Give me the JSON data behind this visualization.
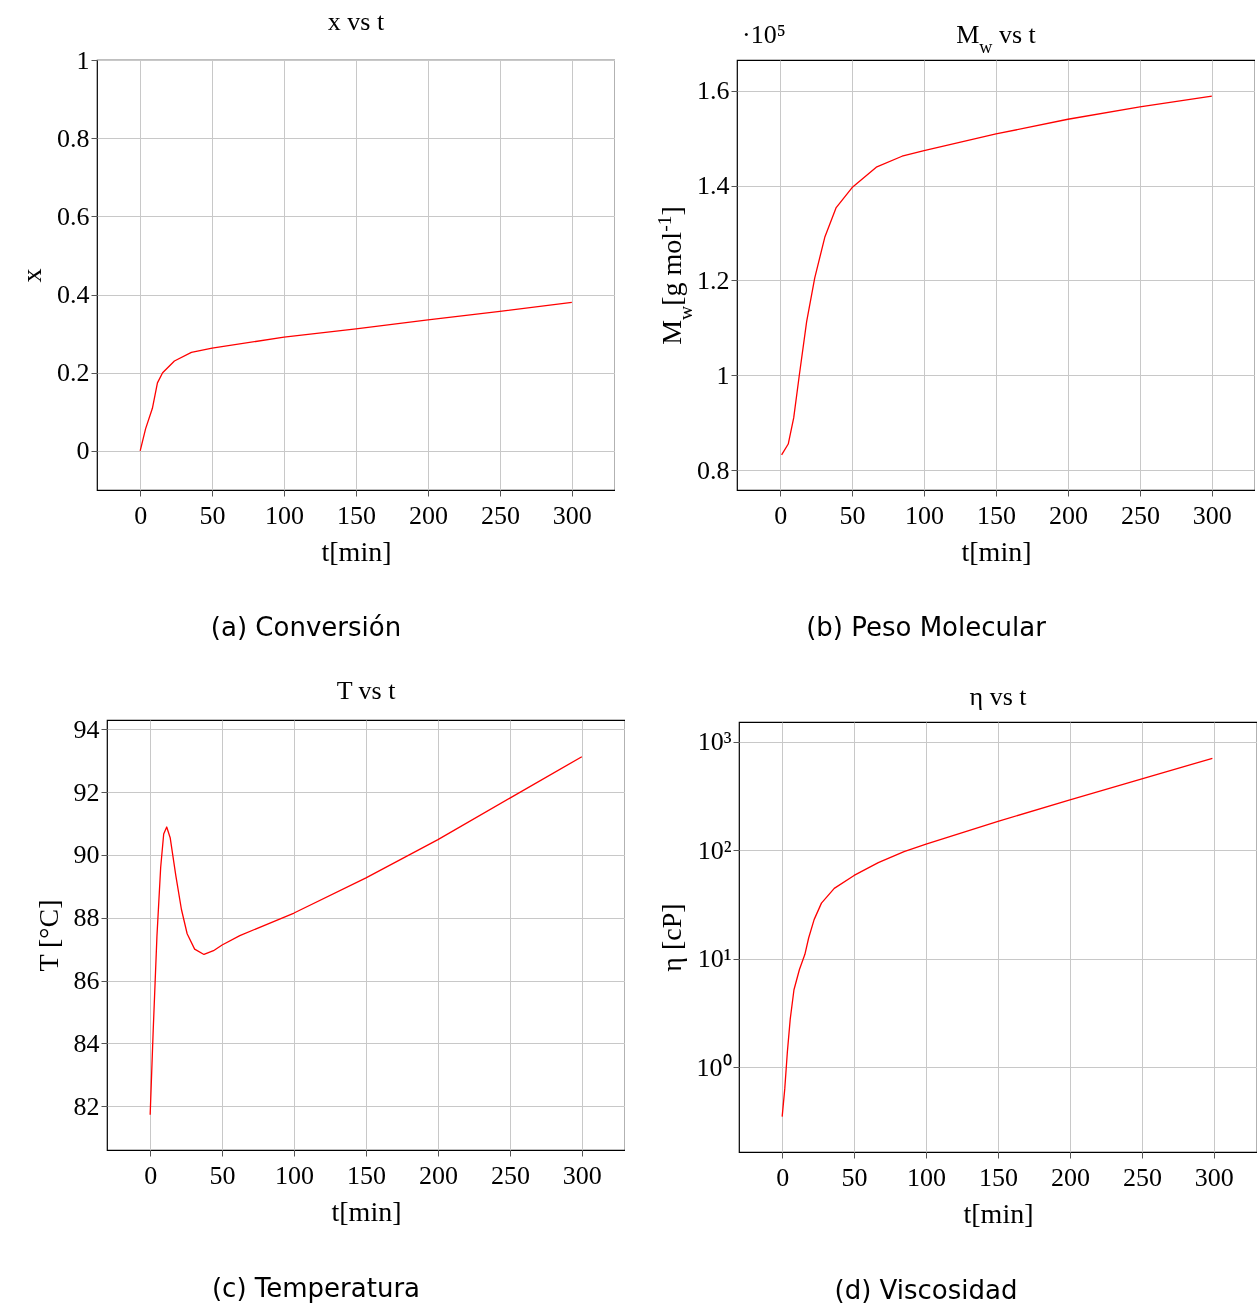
{
  "chart_data": [
    {
      "type": "line",
      "title": "x vs t",
      "xlabel": "t[min]",
      "ylabel": "x",
      "annotations": [
        "(a) Conversión"
      ],
      "color": "#ff0000",
      "grid": true,
      "x": [
        0,
        3.8,
        8.5,
        12,
        15.6,
        23.8,
        35.6,
        50,
        100,
        150,
        200,
        250,
        300
      ],
      "values": [
        0,
        0.057,
        0.109,
        0.174,
        0.2,
        0.23,
        0.252,
        0.263,
        0.291,
        0.312,
        0.335,
        0.357,
        0.38
      ],
      "xlim": [
        -30,
        330
      ],
      "xticks": [
        0,
        50,
        100,
        150,
        200,
        250,
        300
      ],
      "ylim": [
        -0.1,
        1
      ],
      "yticks": [
        0,
        0.2,
        0.4,
        0.6,
        0.8,
        1
      ]
    },
    {
      "type": "line",
      "title": "M$_{w}$ vs t",
      "xlabel": "t[min]",
      "ylabel": "M$_{w}$[g mol$^{-1}$]",
      "annotations": [
        "·10⁵",
        "(b) Peso Molecular"
      ],
      "color": "#ff0000",
      "grid": true,
      "x": [
        1,
        5.6,
        9.4,
        13.3,
        18.4,
        24,
        31,
        38.8,
        50,
        66.8,
        84.7,
        100,
        150,
        200,
        250,
        300
      ],
      "values": [
        0.832,
        0.855,
        0.91,
        1.0,
        1.113,
        1.205,
        1.291,
        1.353,
        1.396,
        1.439,
        1.462,
        1.474,
        1.509,
        1.54,
        1.566,
        1.589
      ],
      "xlim": [
        -30,
        330
      ],
      "xticks": [
        0,
        50,
        100,
        150,
        200,
        250,
        300
      ],
      "ylim": [
        0.758,
        1.665
      ],
      "yticks": [
        0.8,
        1,
        1.2,
        1.4,
        1.6
      ]
    },
    {
      "type": "line",
      "title": "T vs t",
      "xlabel": "t[min]",
      "ylabel": "T [°C]",
      "annotations": [
        "(c) Temperatura"
      ],
      "color": "#ff0000",
      "grid": true,
      "x": [
        0,
        2.1,
        4.7,
        7.3,
        9.4,
        11.5,
        13.9,
        17.8,
        21.7,
        25.7,
        30.9,
        37.4,
        44,
        50,
        62.3,
        100,
        150,
        200,
        250,
        300
      ],
      "values": [
        81.72,
        84.4,
        87.4,
        89.6,
        90.67,
        90.89,
        90.55,
        89.35,
        88.27,
        87.49,
        87.0,
        86.83,
        86.95,
        87.13,
        87.43,
        88.15,
        89.27,
        90.49,
        91.81,
        93.13
      ],
      "xlim": [
        -30,
        330
      ],
      "xticks": [
        0,
        50,
        100,
        150,
        200,
        250,
        300
      ],
      "ylim": [
        80.6,
        94.3
      ],
      "yticks": [
        82,
        84,
        86,
        88,
        90,
        92,
        94
      ]
    },
    {
      "type": "line",
      "title": "η vs t",
      "xlabel": "t[min]",
      "ylabel": "η [cP]",
      "annotations": [
        "(d) Viscosidad"
      ],
      "color": "#ff0000",
      "grid": true,
      "log": "y",
      "x": [
        0,
        1.8,
        3.6,
        5.6,
        8.2,
        12,
        15.8,
        18.4,
        22.2,
        27.3,
        36.2,
        50,
        66.8,
        84.7,
        100,
        150,
        200,
        250,
        299
      ],
      "values": [
        0.35,
        0.63,
        1.37,
        2.77,
        5.17,
        7.95,
        10.96,
        15.5,
        22.9,
        32.5,
        44.5,
        58.5,
        76.9,
        97.2,
        113.7,
        184.6,
        290.5,
        454,
        703
      ],
      "xlim": [
        -30,
        330
      ],
      "xticks": [
        0,
        50,
        100,
        150,
        200,
        250,
        300
      ],
      "ylim": [
        0.165,
        1520
      ],
      "yticks": [
        {
          "value": 1,
          "label": "10⁰"
        },
        {
          "value": 10,
          "label": "10¹"
        },
        {
          "value": 100,
          "label": "10²"
        },
        {
          "value": 1000,
          "label": "10³"
        }
      ]
    }
  ]
}
